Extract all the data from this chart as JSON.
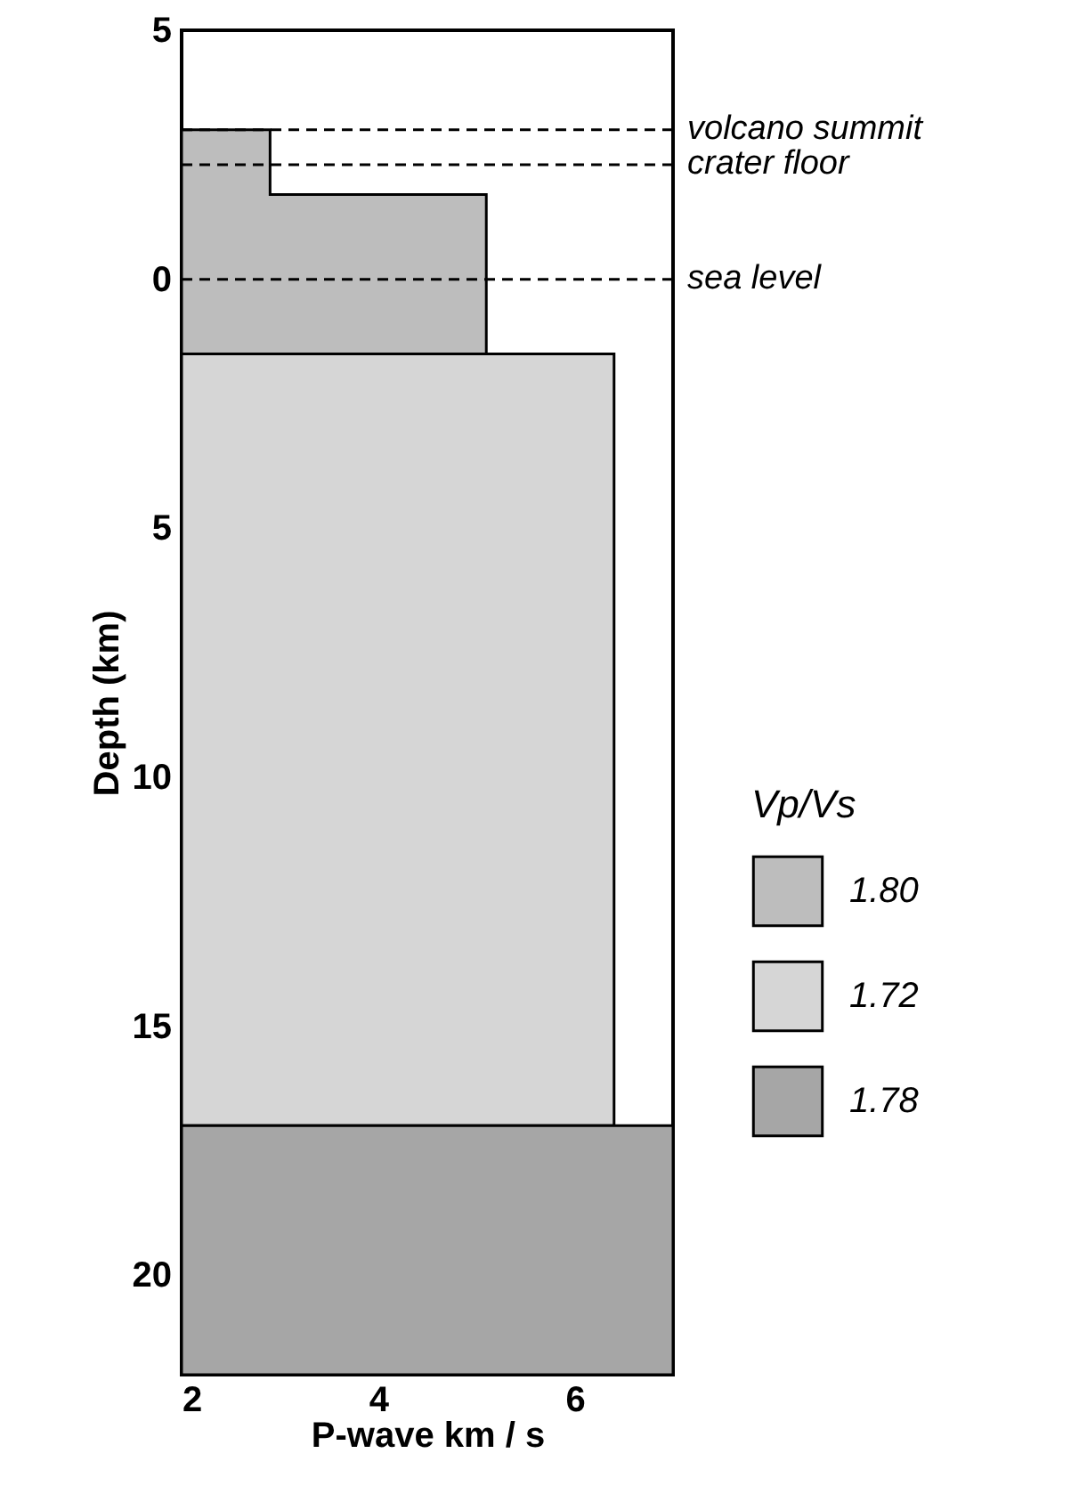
{
  "chart_data": {
    "type": "area",
    "orientation": "horizontal",
    "xlabel": "P-wave km / s",
    "ylabel": "Depth (km)",
    "legend_title": "Vp/Vs",
    "legend": "right",
    "xlim": [
      2,
      7
    ],
    "xticks": [
      2,
      4,
      6
    ],
    "ylim": [
      22,
      -5
    ],
    "yticks": [
      {
        "value": -5,
        "label": "5"
      },
      0,
      5,
      10,
      15,
      20
    ],
    "series": [
      {
        "name": "1.80",
        "color": "#bdbdbd",
        "x": [
          -3,
          -1.7,
          -1.7,
          1.5
        ],
        "values": [
          2.9,
          2.9,
          5.1,
          5.1
        ]
      },
      {
        "name": "1.72",
        "color": "#d6d6d6",
        "x": [
          1.5,
          17
        ],
        "values": [
          6.4,
          6.4
        ]
      },
      {
        "name": "1.78",
        "color": "#a6a6a6",
        "x": [
          17,
          22
        ],
        "values": [
          7,
          7
        ]
      }
    ],
    "ref_lines": [
      {
        "axis": "y",
        "value": -3,
        "label": "volcano summit",
        "line_style": "dashed"
      },
      {
        "axis": "y",
        "value": -2.3,
        "label": "crater floor",
        "line_style": "dashed"
      },
      {
        "axis": "y",
        "value": 0,
        "label": "sea level",
        "line_style": "dashed"
      }
    ]
  }
}
